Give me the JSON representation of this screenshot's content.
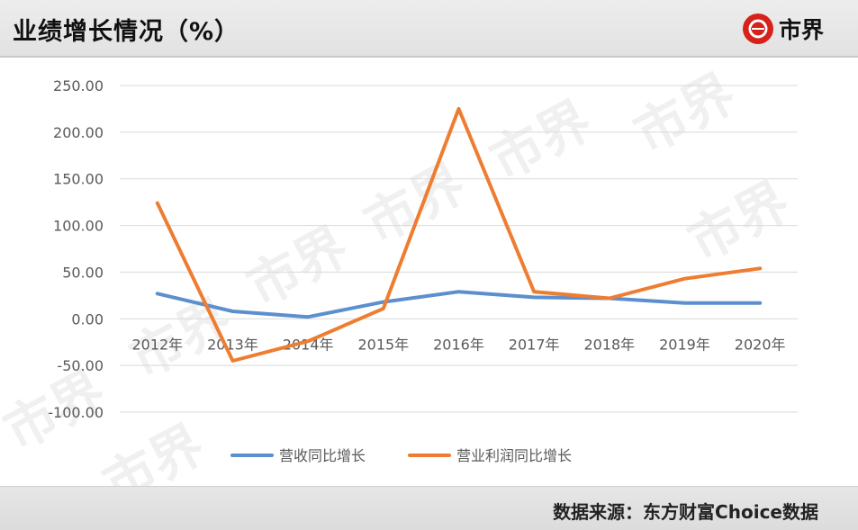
{
  "header": {
    "title": "业绩增长情况（%）",
    "logo_text": "市界",
    "logo_color": "#d7211b"
  },
  "watermark": {
    "text": "市界"
  },
  "footer": {
    "source": "数据来源：东方财富Choice数据"
  },
  "chart_data": {
    "type": "line",
    "title": "",
    "xlabel": "",
    "ylabel": "",
    "categories": [
      "2012年",
      "2013年",
      "2014年",
      "2015年",
      "2016年",
      "2017年",
      "2018年",
      "2019年",
      "2020年"
    ],
    "ylim": [
      -100,
      250
    ],
    "yticks": [
      "-100.00",
      "-50.00",
      "0.00",
      "50.00",
      "100.00",
      "150.00",
      "200.00",
      "250.00"
    ],
    "grid": true,
    "legend_position": "bottom",
    "series": [
      {
        "name": "营收同比增长",
        "color": "#5b8fce",
        "values": [
          27,
          8,
          2,
          18,
          29,
          23,
          22,
          17,
          17
        ]
      },
      {
        "name": "营业利润同比增长",
        "color": "#ee7d31",
        "values": [
          124,
          -45,
          -24,
          11,
          225,
          29,
          22,
          43,
          54
        ]
      }
    ]
  }
}
